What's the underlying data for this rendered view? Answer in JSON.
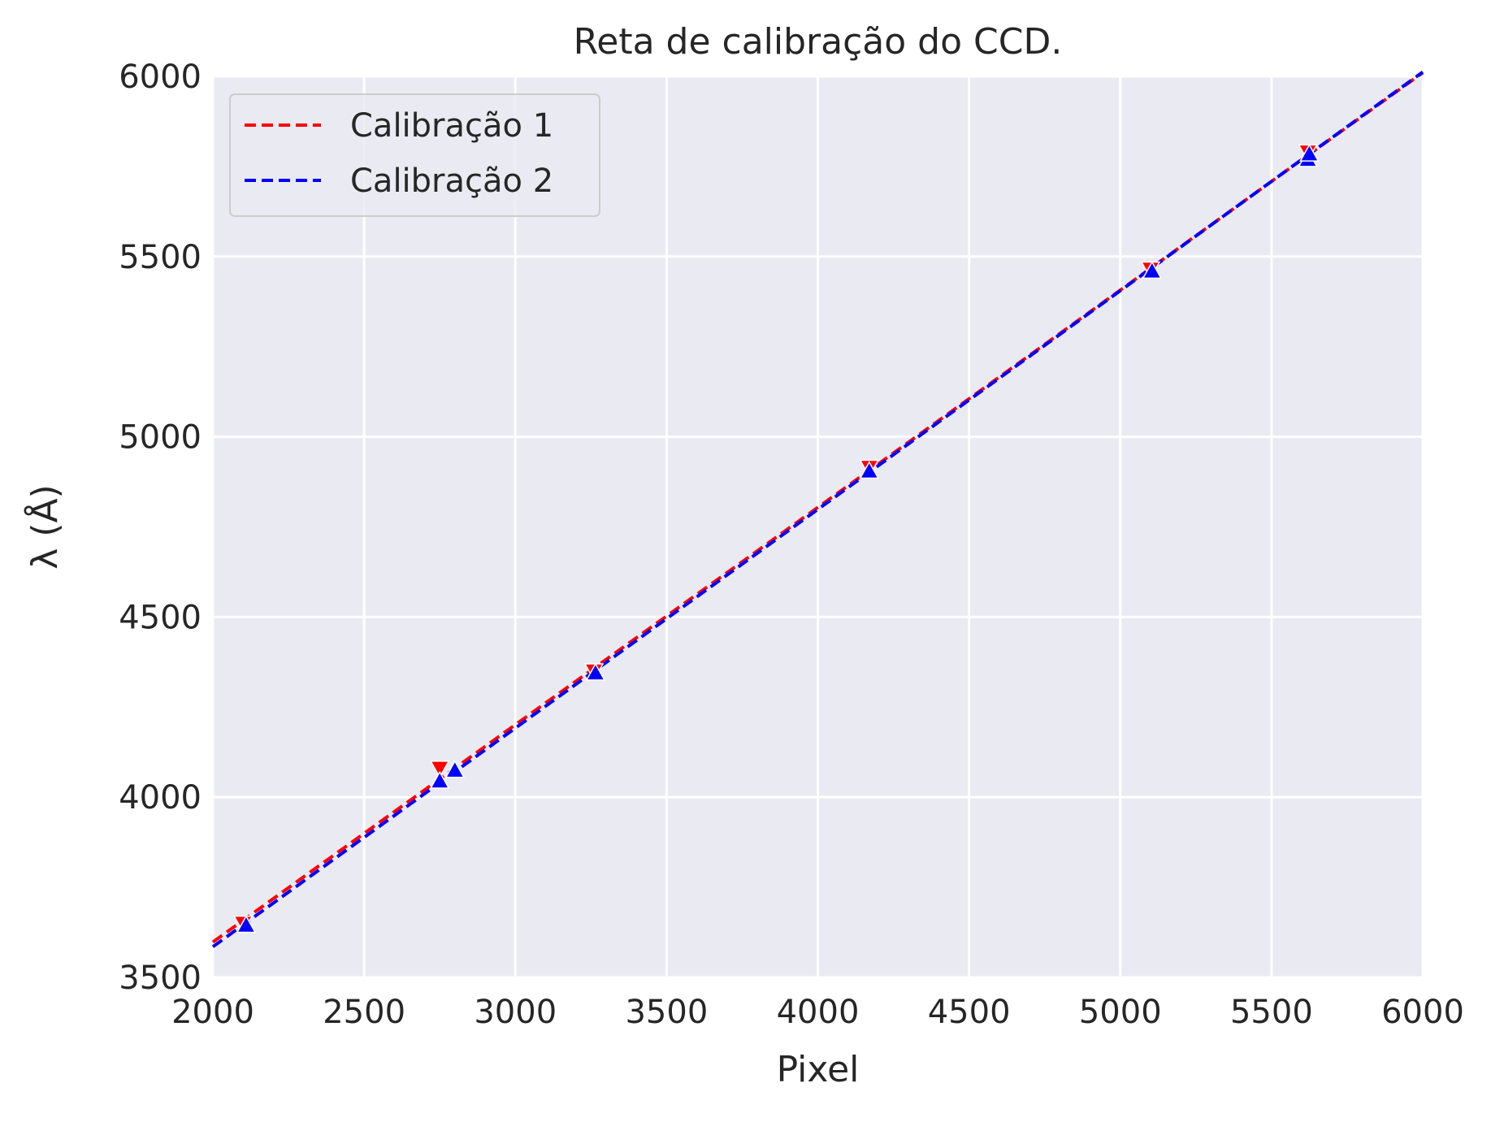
{
  "chart_data": {
    "type": "line",
    "title": "Reta de calibração do CCD.",
    "xlabel": "Pixel",
    "ylabel": "λ (Å)",
    "xlim": [
      2000,
      6000
    ],
    "ylim": [
      3500,
      6000
    ],
    "xticks": [
      2000,
      2500,
      3000,
      3500,
      4000,
      4500,
      5000,
      5500,
      6000
    ],
    "yticks": [
      3500,
      4000,
      4500,
      5000,
      5500,
      6000
    ],
    "grid": true,
    "legend_position": "top-left",
    "series": [
      {
        "name": "Calibração 1",
        "color": "#ff0000",
        "line_style": "dashed",
        "marker": "triangle-down",
        "fit_line": {
          "x": [
            2000,
            6000
          ],
          "y": [
            3598,
            6010
          ]
        },
        "points": [
          {
            "x": 2100,
            "y": 3650
          },
          {
            "x": 2750,
            "y": 4080
          },
          {
            "x": 3260,
            "y": 4350
          },
          {
            "x": 4170,
            "y": 4915
          },
          {
            "x": 5100,
            "y": 5465
          },
          {
            "x": 5620,
            "y": 5790
          }
        ]
      },
      {
        "name": "Calibração 2",
        "color": "#0000ff",
        "line_style": "dashed",
        "marker": "triangle-up",
        "fit_line": {
          "x": [
            2000,
            6000
          ],
          "y": [
            3585,
            6012
          ]
        },
        "points": [
          {
            "x": 2110,
            "y": 3645
          },
          {
            "x": 2750,
            "y": 4045
          },
          {
            "x": 2800,
            "y": 4075
          },
          {
            "x": 3265,
            "y": 4345
          },
          {
            "x": 4170,
            "y": 4905
          },
          {
            "x": 5105,
            "y": 5460
          },
          {
            "x": 5620,
            "y": 5770
          },
          {
            "x": 5625,
            "y": 5785
          }
        ]
      }
    ]
  }
}
